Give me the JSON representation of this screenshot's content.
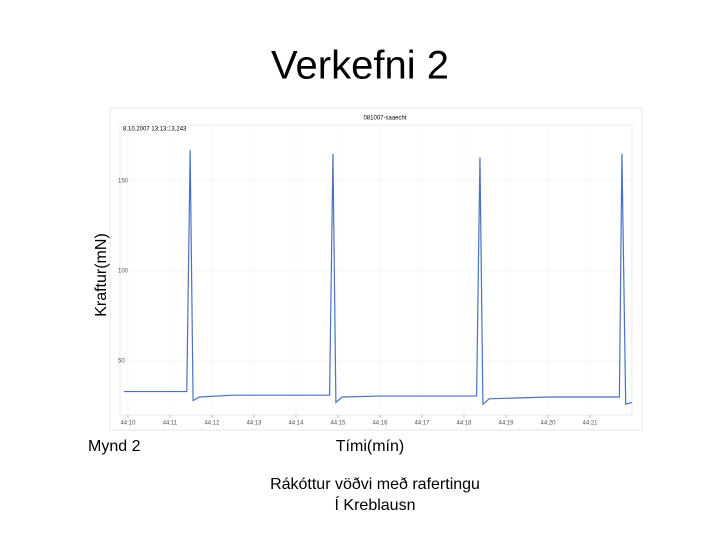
{
  "slide": {
    "title": "Verkefni 2",
    "figure_label": "Mynd 2",
    "caption": [
      "Rákóttur vöðvi með rafertingu",
      "Í Kreblausn"
    ]
  },
  "chart_data": {
    "type": "line",
    "title": "081007-saaecht",
    "subtitle": "8.10.2007 13:13:13,243",
    "x_label": "Tími(mín)",
    "y_label": "Kraftur(mN)",
    "series": [
      {
        "name": "Kraftur",
        "color": "#4a72c4",
        "x": [
          2649.9,
          2651.4,
          2651.48,
          2651.55,
          2651.7,
          2652.5,
          2654.8,
          2654.88,
          2654.95,
          2655.1,
          2656,
          2658.3,
          2658.38,
          2658.45,
          2658.6,
          2660,
          2661.7,
          2661.76,
          2661.85,
          2662
        ],
        "values": [
          33,
          33,
          167,
          28,
          30,
          31,
          31,
          165,
          27,
          30,
          30.5,
          30.5,
          163,
          26,
          29,
          30,
          30,
          165,
          26,
          27
        ]
      }
    ],
    "xlim": [
      2649.81,
      2662
    ],
    "ylim": [
      20,
      181
    ],
    "xticks": [
      {
        "value": 2650,
        "label": "44:10"
      },
      {
        "value": 2651,
        "label": "44:11"
      },
      {
        "value": 2652,
        "label": "44:12"
      },
      {
        "value": 2653,
        "label": "44:13"
      },
      {
        "value": 2654,
        "label": "44:14"
      },
      {
        "value": 2655,
        "label": "44:15"
      },
      {
        "value": 2656,
        "label": "44:16"
      },
      {
        "value": 2657,
        "label": "44:17"
      },
      {
        "value": 2658,
        "label": "44:18"
      },
      {
        "value": 2659,
        "label": "44:19"
      },
      {
        "value": 2660,
        "label": "44:20"
      },
      {
        "value": 2661,
        "label": "44:21"
      }
    ],
    "yticks": [
      50,
      100,
      150
    ],
    "grid": true
  }
}
